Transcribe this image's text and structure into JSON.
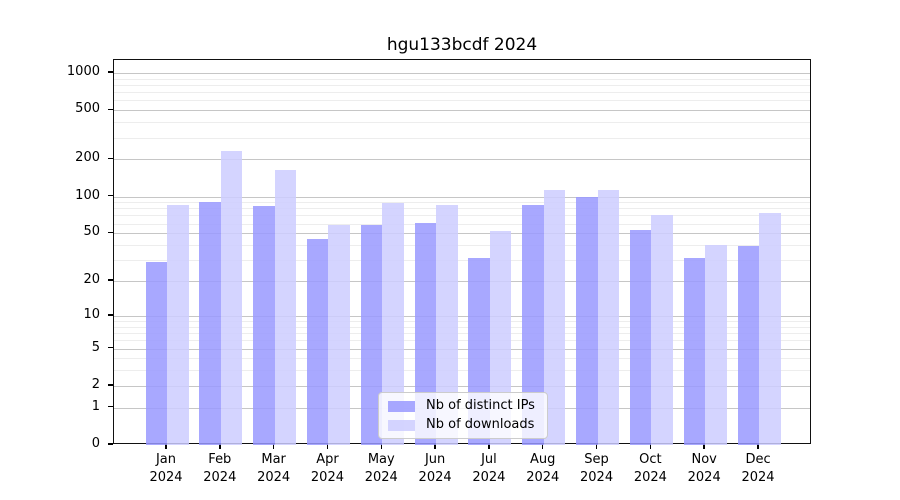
{
  "chart_data": {
    "type": "bar",
    "title": "hgu133bcdf 2024",
    "categories": [
      "Jan",
      "Feb",
      "Mar",
      "Apr",
      "May",
      "Jun",
      "Jul",
      "Aug",
      "Sep",
      "Oct",
      "Nov",
      "Dec"
    ],
    "category_year": "2024",
    "series": [
      {
        "name": "Nb of distinct IPs",
        "color": "#9999ff",
        "values": [
          29,
          90,
          83,
          45,
          59,
          61,
          31,
          86,
          100,
          53,
          31,
          39
        ]
      },
      {
        "name": "Nb of downloads",
        "color": "#ccccff",
        "values": [
          86,
          234,
          165,
          58,
          88,
          85,
          52,
          112,
          114,
          70,
          40,
          73
        ]
      }
    ],
    "xlabel": "",
    "ylabel": "",
    "yscale": "log1p",
    "ylim": [
      0,
      1270
    ],
    "yticks": [
      0,
      1,
      2,
      5,
      10,
      20,
      50,
      100,
      200,
      500,
      1000
    ],
    "minor_gridlines": [
      3,
      4,
      6,
      7,
      8,
      9,
      30,
      40,
      60,
      70,
      80,
      90,
      300,
      400,
      600,
      700,
      800,
      900
    ],
    "grid": true,
    "legend_position": "lower center"
  }
}
